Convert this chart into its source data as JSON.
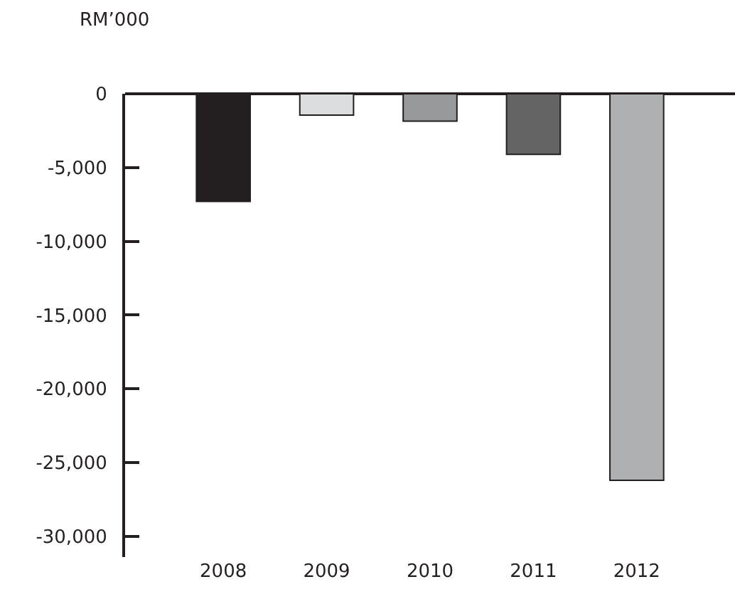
{
  "chart_data": {
    "type": "bar",
    "ylabel": "RM’000",
    "categories": [
      "2008",
      "2009",
      "2010",
      "2011",
      "2012"
    ],
    "values": [
      -7300,
      -1450,
      -1850,
      -4100,
      -26200
    ],
    "colors": [
      "#231f20",
      "#dcddde",
      "#98999b",
      "#646464",
      "#afb0b2"
    ],
    "ylim": [
      -31400,
      0
    ],
    "yticks": [
      {
        "value": 0,
        "label": "0"
      },
      {
        "value": -5000,
        "label": "-5,000"
      },
      {
        "value": -10000,
        "label": "-10,000"
      },
      {
        "value": -15000,
        "label": "-15,000"
      },
      {
        "value": -20000,
        "label": "-20,000"
      },
      {
        "value": -25000,
        "label": "-25,000"
      },
      {
        "value": -30000,
        "label": "-30,000"
      }
    ],
    "grid": false,
    "legend": false
  }
}
